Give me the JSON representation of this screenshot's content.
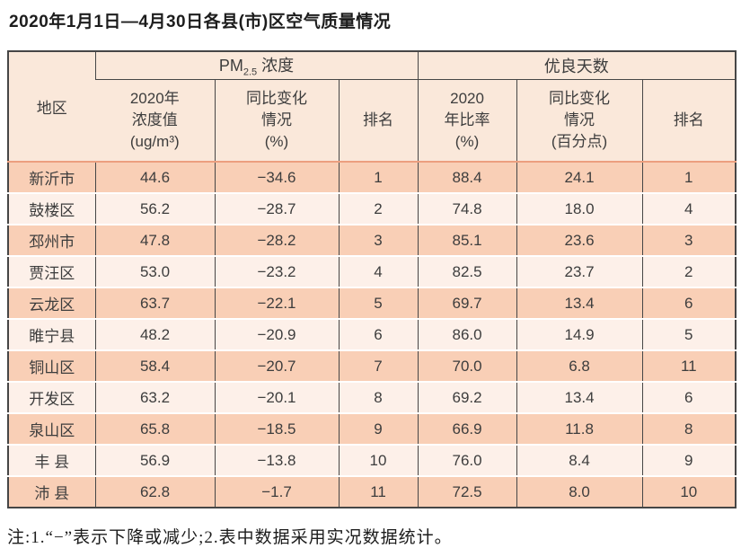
{
  "title": "2020年1月1日—4月30日各县(市)区空气质量情况",
  "table": {
    "columns": {
      "region": "地区",
      "pm25_group": {
        "prefix": "PM",
        "subscript": "2.5",
        "suffix": " 浓度"
      },
      "good_days_group": "优良天数",
      "pm_value": "2020年\n浓度值\n(ug/m³)",
      "pm_change": "同比变化\n情况\n(%)",
      "pm_rank": "排名",
      "good_ratio": "2020\n年比率\n(%)",
      "good_change": "同比变化\n情况\n(百分点)",
      "good_rank": "排名"
    },
    "rows": [
      [
        "新沂市",
        "44.6",
        "−34.6",
        "1",
        "88.4",
        "24.1",
        "1"
      ],
      [
        "鼓楼区",
        "56.2",
        "−28.7",
        "2",
        "74.8",
        "18.0",
        "4"
      ],
      [
        "邳州市",
        "47.8",
        "−28.2",
        "3",
        "85.1",
        "23.6",
        "3"
      ],
      [
        "贾汪区",
        "53.0",
        "−23.2",
        "4",
        "82.5",
        "23.7",
        "2"
      ],
      [
        "云龙区",
        "63.7",
        "−22.1",
        "5",
        "69.7",
        "13.4",
        "6"
      ],
      [
        "睢宁县",
        "48.2",
        "−20.9",
        "6",
        "86.0",
        "14.9",
        "5"
      ],
      [
        "铜山区",
        "58.4",
        "−20.7",
        "7",
        "70.0",
        "6.8",
        "11"
      ],
      [
        "开发区",
        "63.2",
        "−20.1",
        "8",
        "69.2",
        "13.4",
        "6"
      ],
      [
        "泉山区",
        "65.8",
        "−18.5",
        "9",
        "66.9",
        "11.8",
        "8"
      ],
      [
        "丰 县",
        "56.9",
        "−13.8",
        "10",
        "76.0",
        "8.4",
        "9"
      ],
      [
        "沛 县",
        "62.8",
        "−1.7",
        "11",
        "72.5",
        "8.0",
        "10"
      ]
    ]
  },
  "note": "注:1.“−”表示下降或减少;2.表中数据采用实况数据统计。",
  "colors": {
    "row_dark": "#f9cfb6",
    "row_light": "#fdf0e9",
    "header_bg": "#fae8da",
    "border_dark": "#464646",
    "header_underline": "#ec9f7f",
    "text": "#3d3d3d"
  }
}
